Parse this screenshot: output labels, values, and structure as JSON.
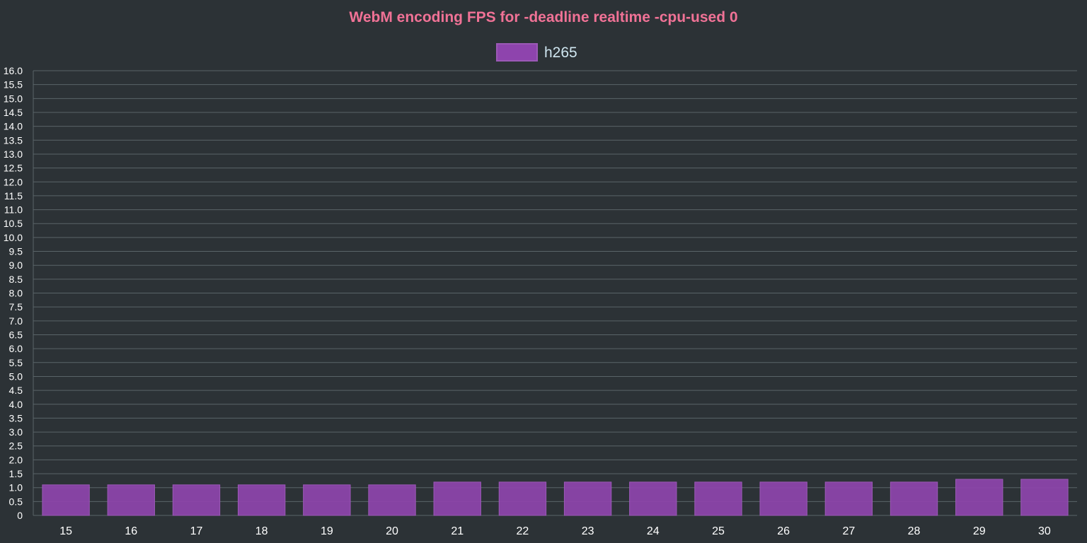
{
  "colors": {
    "background": "#2c3236",
    "title": "#f07296",
    "tick_text": "#ffffff",
    "legend_text": "#cfe6f0",
    "grid": "#5a6468",
    "bar_fill": "#8e44ad",
    "bar_stroke": "#9b59b6"
  },
  "chart_data": {
    "type": "bar",
    "title": "WebM encoding FPS for -deadline realtime -cpu-used 0",
    "xlabel": "",
    "ylabel": "",
    "categories": [
      "15",
      "16",
      "17",
      "18",
      "19",
      "20",
      "21",
      "22",
      "23",
      "24",
      "25",
      "26",
      "27",
      "28",
      "29",
      "30"
    ],
    "series": [
      {
        "name": "h265",
        "values": [
          1.1,
          1.1,
          1.1,
          1.1,
          1.1,
          1.1,
          1.2,
          1.2,
          1.2,
          1.2,
          1.2,
          1.2,
          1.2,
          1.2,
          1.3,
          1.3
        ]
      }
    ],
    "ylim": [
      0,
      16
    ],
    "y_ticks": [
      "0",
      "0.5",
      "1.0",
      "1.5",
      "2.0",
      "2.5",
      "3.0",
      "3.5",
      "4.0",
      "4.5",
      "5.0",
      "5.5",
      "6.0",
      "6.5",
      "7.0",
      "7.5",
      "8.0",
      "8.5",
      "9.0",
      "9.5",
      "10.0",
      "10.5",
      "11.0",
      "11.5",
      "12.0",
      "12.5",
      "13.0",
      "13.5",
      "14.0",
      "14.5",
      "15.0",
      "15.5",
      "16.0"
    ],
    "grid": true,
    "legend_position": "top"
  }
}
